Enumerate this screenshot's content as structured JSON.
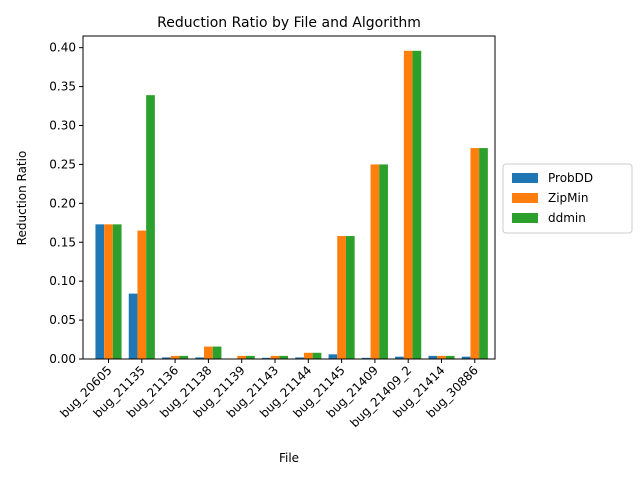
{
  "chart_data": {
    "type": "bar",
    "title": "Reduction Ratio by File and Algorithm",
    "xlabel": "File",
    "ylabel": "Reduction Ratio",
    "ylim": [
      0,
      0.415
    ],
    "yticks": [
      "0.00",
      "0.05",
      "0.10",
      "0.15",
      "0.20",
      "0.25",
      "0.30",
      "0.35",
      "0.40"
    ],
    "grid": false,
    "legend_position": "right",
    "categories": [
      "bug_20605",
      "bug_21135",
      "bug_21136",
      "bug_21138",
      "bug_21139",
      "bug_21143",
      "bug_21144",
      "bug_21145",
      "bug_21409",
      "bug_21409_2",
      "bug_21414",
      "bug_30886"
    ],
    "series": [
      {
        "name": "ProbDD",
        "color": "#1f77b4",
        "values": [
          0.173,
          0.084,
          0.002,
          0.002,
          0.0005,
          0.0015,
          0.002,
          0.006,
          0.0015,
          0.003,
          0.004,
          0.003
        ]
      },
      {
        "name": "ZipMin",
        "color": "#ff7f0e",
        "values": [
          0.173,
          0.165,
          0.004,
          0.016,
          0.004,
          0.004,
          0.008,
          0.158,
          0.25,
          0.396,
          0.004,
          0.271
        ]
      },
      {
        "name": "ddmin",
        "color": "#2ca02c",
        "values": [
          0.173,
          0.339,
          0.004,
          0.016,
          0.004,
          0.004,
          0.008,
          0.158,
          0.25,
          0.396,
          0.004,
          0.271
        ]
      }
    ]
  }
}
